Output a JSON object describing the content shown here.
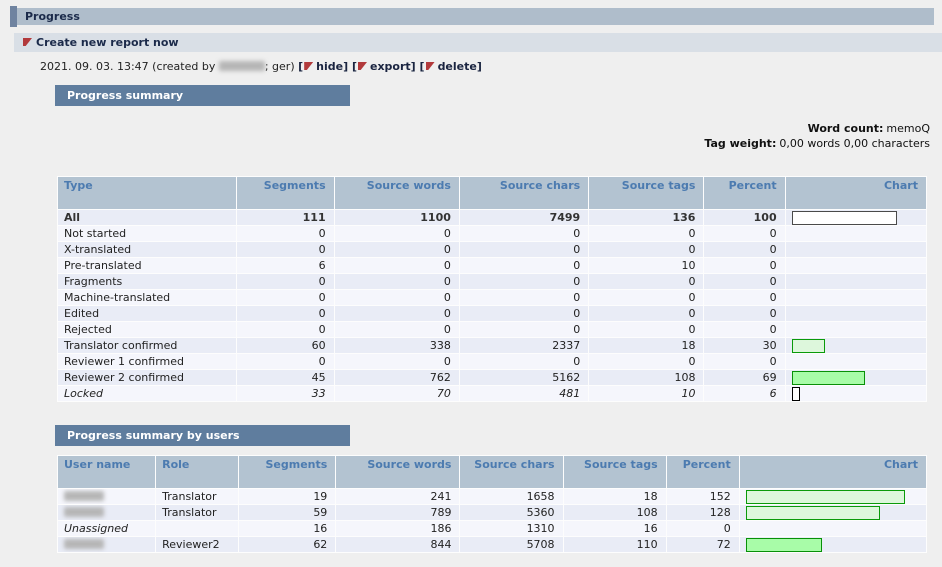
{
  "header": {
    "title": "Progress",
    "create_link": "Create new report now"
  },
  "report": {
    "timestamp": "2021. 09. 03. 13:47",
    "created_by_prefix": "(created by",
    "created_by_suffix": "; ger)",
    "actions": [
      {
        "label": "hide"
      },
      {
        "label": "export"
      },
      {
        "label": "delete"
      }
    ]
  },
  "meta": {
    "word_count_label": "Word count:",
    "word_count_value": "memoQ",
    "tag_weight_label": "Tag weight:",
    "tag_weight_value": "0,00 words 0,00 characters"
  },
  "summary": {
    "title": "Progress summary",
    "columns": [
      "Type",
      "Segments",
      "Source words",
      "Source chars",
      "Source tags",
      "Percent",
      "Chart"
    ],
    "rows": [
      {
        "label": "All",
        "values": [
          "111",
          "1100",
          "7499",
          "136",
          "100"
        ],
        "bar": "empty",
        "emphasis": "bold"
      },
      {
        "label": "Not started",
        "values": [
          "0",
          "0",
          "0",
          "0",
          "0"
        ],
        "bar": "none"
      },
      {
        "label": "X-translated",
        "values": [
          "0",
          "0",
          "0",
          "0",
          "0"
        ],
        "bar": "none"
      },
      {
        "label": "Pre-translated",
        "values": [
          "6",
          "0",
          "0",
          "10",
          "0"
        ],
        "bar": "none"
      },
      {
        "label": "Fragments",
        "values": [
          "0",
          "0",
          "0",
          "0",
          "0"
        ],
        "bar": "none"
      },
      {
        "label": "Machine-translated",
        "values": [
          "0",
          "0",
          "0",
          "0",
          "0"
        ],
        "bar": "none"
      },
      {
        "label": "Edited",
        "values": [
          "0",
          "0",
          "0",
          "0",
          "0"
        ],
        "bar": "none"
      },
      {
        "label": "Rejected",
        "values": [
          "0",
          "0",
          "0",
          "0",
          "0"
        ],
        "bar": "none"
      },
      {
        "label": "Translator confirmed",
        "values": [
          "60",
          "338",
          "2337",
          "18",
          "30"
        ],
        "bar": "light"
      },
      {
        "label": "Reviewer 1 confirmed",
        "values": [
          "0",
          "0",
          "0",
          "0",
          "0"
        ],
        "bar": "none"
      },
      {
        "label": "Reviewer 2 confirmed",
        "values": [
          "45",
          "762",
          "5162",
          "108",
          "69"
        ],
        "bar": "bright"
      },
      {
        "label": "Locked",
        "values": [
          "33",
          "70",
          "481",
          "10",
          "6"
        ],
        "bar": "locked",
        "emphasis": "italic"
      }
    ]
  },
  "by_users": {
    "title": "Progress summary by users",
    "columns": [
      "User name",
      "Role",
      "Segments",
      "Source words",
      "Source chars",
      "Source tags",
      "Percent",
      "Chart"
    ],
    "rows": [
      {
        "user": "",
        "user_redacted": true,
        "role": "Translator",
        "values": [
          "19",
          "241",
          "1658",
          "18",
          "152"
        ],
        "bar": "light"
      },
      {
        "user": "",
        "user_redacted": true,
        "role": "Translator",
        "values": [
          "59",
          "789",
          "5360",
          "108",
          "128"
        ],
        "bar": "light"
      },
      {
        "user": "Unassigned",
        "user_redacted": false,
        "role": "",
        "values": [
          "16",
          "186",
          "1310",
          "16",
          "0"
        ],
        "bar": "none",
        "emphasis": "italic-user"
      },
      {
        "user": "",
        "user_redacted": true,
        "role": "Reviewer2",
        "values": [
          "62",
          "844",
          "5708",
          "110",
          "72"
        ],
        "bar": "bright"
      }
    ]
  },
  "colors": {
    "page_bg": "#efefef",
    "title_bar_bg": "#afbdcb",
    "title_accent": "#6f83a0",
    "subtitle_bar_bg": "#d9dfe6",
    "section_header_bg": "#5f7d9e",
    "table_header_bg": "#b3c3d1",
    "table_header_text": "#4c7bb0",
    "row_dark": "#e9ecf6",
    "row_light": "#f5f6fc",
    "accent_red": "#b23a3c",
    "bar_green_border": "#0a9a0a",
    "bar_light_fill": "#ddf7dc",
    "bar_bright_fill": "#a8fca8"
  }
}
